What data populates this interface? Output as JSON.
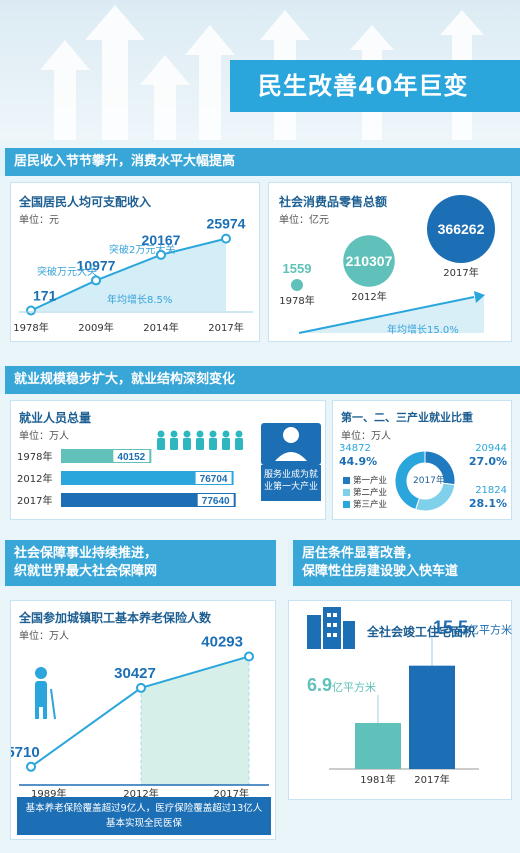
{
  "title": "民生改善40年巨变",
  "section1": {
    "bar": "居民收入节节攀升，消费水平大幅提高",
    "left": {
      "title": "全国居民人均可支配收入",
      "unit": "单位：元",
      "note1": "突破万元大关",
      "note2": "突破2万元大关",
      "growth": "年均增长8.5%"
    },
    "right": {
      "title": "社会消费品零售总额",
      "unit": "单位：亿元",
      "growth": "年均增长15.0%"
    }
  },
  "section2": {
    "bar": "就业规模稳步扩大，就业结构深刻变化",
    "left": {
      "title": "就业人员总量",
      "unit": "单位：万人",
      "callout": "服务业成为就业第一大产业"
    },
    "right": {
      "title": "第一、二、三产业就业比重",
      "unit": "单位：万人",
      "center": "2017年"
    }
  },
  "section3": {
    "bar_left_line1": "社会保障事业持续推进，",
    "bar_left_line2": "织就世界最大社会保障网",
    "bar_right_line1": "居住条件显著改善，",
    "bar_right_line2": "保障性住房建设驶入快车道",
    "left": {
      "title": "全国参加城镇职工基本养老保险人数",
      "unit": "单位：万人",
      "footer_line1": "基本养老保险覆盖超过9亿人，医疗保险覆盖超过13亿人",
      "footer_line2": "基本实现全民医保"
    },
    "right": {
      "title": "全社会竣工住宅面积"
    }
  },
  "chart_data": [
    {
      "type": "line",
      "title": "全国居民人均可支配收入",
      "unit": "元",
      "categories": [
        "1978年",
        "2009年",
        "2014年",
        "2017年"
      ],
      "values": [
        171,
        10977,
        20167,
        25974
      ]
    },
    {
      "type": "bubble",
      "title": "社会消费品零售总额",
      "unit": "亿元",
      "categories": [
        "1978年",
        "2012年",
        "2017年"
      ],
      "values": [
        1559,
        210307,
        366262
      ]
    },
    {
      "type": "bar",
      "title": "就业人员总量",
      "unit": "万人",
      "categories": [
        "1978年",
        "2012年",
        "2017年"
      ],
      "values": [
        40152,
        76704,
        77640
      ]
    },
    {
      "type": "pie",
      "title": "第一、二、三产业就业比重",
      "unit": "万人",
      "series": [
        {
          "name": "第一产业",
          "value": 20944,
          "percent_label": "27.0%",
          "color": "#1f7ac0"
        },
        {
          "name": "第二产业",
          "value": 21824,
          "percent_label": "28.1%",
          "color": "#7fd0ea"
        },
        {
          "name": "第三产业",
          "value": 34872,
          "percent_label": "44.9%",
          "color": "#2aa6dc"
        }
      ]
    },
    {
      "type": "line",
      "title": "全国参加城镇职工基本养老保险人数",
      "unit": "万人",
      "categories": [
        "1989年",
        "2012年",
        "2017年"
      ],
      "values": [
        5710,
        30427,
        40293
      ]
    },
    {
      "type": "bar",
      "title": "全社会竣工住宅面积",
      "categories": [
        "1981年",
        "2017年"
      ],
      "values": [
        6.9,
        15.5
      ],
      "value_unit_label": "亿平方米"
    }
  ],
  "colors": {
    "accent": "#2aa6dc",
    "dark": "#1d6fb5",
    "teal": "#5fc1b9",
    "bg": "#eaf5fa"
  }
}
